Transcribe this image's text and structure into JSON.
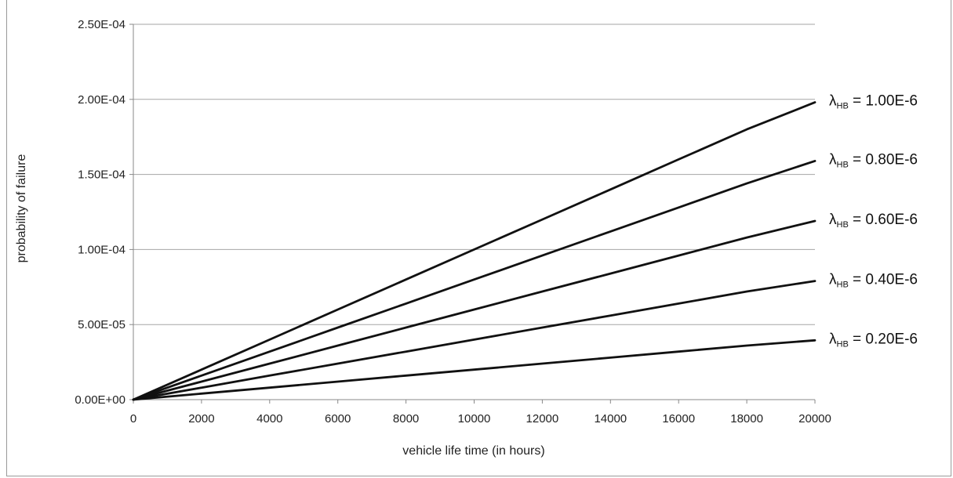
{
  "chart_data": {
    "type": "line",
    "title": "",
    "xlabel": "vehicle life time (in hours)",
    "ylabel": "probability of failure",
    "xlim": [
      0,
      20000
    ],
    "ylim": [
      0,
      0.00025
    ],
    "x_ticks": [
      {
        "value": 0,
        "label": "0"
      },
      {
        "value": 2000,
        "label": "2000"
      },
      {
        "value": 4000,
        "label": "4000"
      },
      {
        "value": 6000,
        "label": "6000"
      },
      {
        "value": 8000,
        "label": "8000"
      },
      {
        "value": 10000,
        "label": "10000"
      },
      {
        "value": 12000,
        "label": "12000"
      },
      {
        "value": 14000,
        "label": "14000"
      },
      {
        "value": 16000,
        "label": "16000"
      },
      {
        "value": 18000,
        "label": "18000"
      },
      {
        "value": 20000,
        "label": "20000"
      }
    ],
    "y_ticks": [
      {
        "value": 0,
        "label": "0.00E+00"
      },
      {
        "value": 5e-05,
        "label": "5.00E-05"
      },
      {
        "value": 0.0001,
        "label": "1.00E-04"
      },
      {
        "value": 0.00015,
        "label": "1.50E-04"
      },
      {
        "value": 0.0002,
        "label": "2.00E-04"
      },
      {
        "value": 0.00025,
        "label": "2.50E-04"
      }
    ],
    "grid": "horizontal",
    "legend": "right, inline labels at line ends",
    "line_color": "#111111",
    "series": [
      {
        "symbol": "λ",
        "subscript": "HB",
        "label_suffix": " = 1.00E-6",
        "x": [
          0,
          2000,
          4000,
          6000,
          8000,
          10000,
          12000,
          14000,
          16000,
          18000,
          20000
        ],
        "values": [
          0,
          2e-05,
          4e-05,
          6e-05,
          8e-05,
          0.0001,
          0.00012,
          0.00014,
          0.00016,
          0.00018,
          0.000198
        ]
      },
      {
        "symbol": "λ",
        "subscript": "HB",
        "label_suffix": " = 0.80E-6",
        "x": [
          0,
          2000,
          4000,
          6000,
          8000,
          10000,
          12000,
          14000,
          16000,
          18000,
          20000
        ],
        "values": [
          0,
          1.6e-05,
          3.2e-05,
          4.8e-05,
          6.4e-05,
          8e-05,
          9.6e-05,
          0.000112,
          0.000128,
          0.000144,
          0.000159
        ]
      },
      {
        "symbol": "λ",
        "subscript": "HB",
        "label_suffix": " = 0.60E-6",
        "x": [
          0,
          2000,
          4000,
          6000,
          8000,
          10000,
          12000,
          14000,
          16000,
          18000,
          20000
        ],
        "values": [
          0,
          1.2e-05,
          2.4e-05,
          3.6e-05,
          4.8e-05,
          6e-05,
          7.2e-05,
          8.4e-05,
          9.6e-05,
          0.000108,
          0.000119
        ]
      },
      {
        "symbol": "λ",
        "subscript": "HB",
        "label_suffix": " = 0.40E-6",
        "x": [
          0,
          2000,
          4000,
          6000,
          8000,
          10000,
          12000,
          14000,
          16000,
          18000,
          20000
        ],
        "values": [
          0,
          8e-06,
          1.6e-05,
          2.4e-05,
          3.2e-05,
          4e-05,
          4.8e-05,
          5.6e-05,
          6.4e-05,
          7.2e-05,
          7.9e-05
        ]
      },
      {
        "symbol": "λ",
        "subscript": "HB",
        "label_suffix": " = 0.20E-6",
        "x": [
          0,
          2000,
          4000,
          6000,
          8000,
          10000,
          12000,
          14000,
          16000,
          18000,
          20000
        ],
        "values": [
          0,
          4e-06,
          8e-06,
          1.2e-05,
          1.6e-05,
          2e-05,
          2.4e-05,
          2.8e-05,
          3.2e-05,
          3.6e-05,
          3.95e-05
        ]
      }
    ]
  }
}
